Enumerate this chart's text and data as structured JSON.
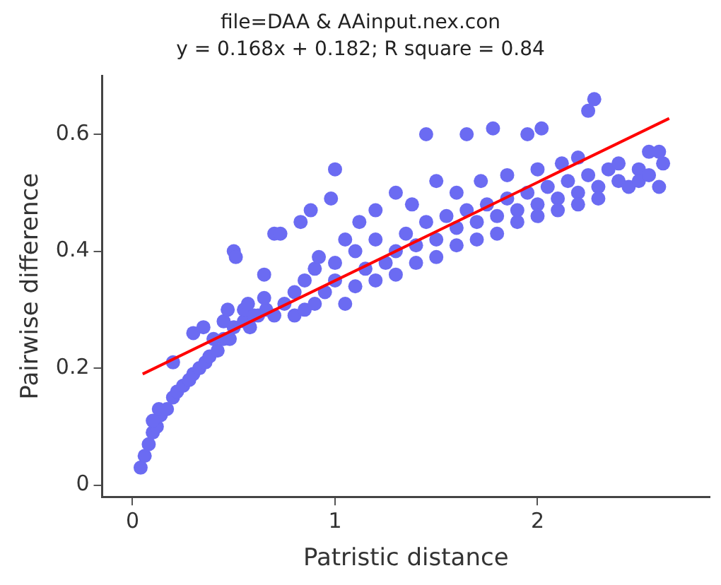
{
  "chart_data": {
    "type": "scatter",
    "title": "file=DAA & AAinput.nex.con",
    "subtitle": "y = 0.168x + 0.182; R square = 0.84",
    "xlabel": "Patristic distance",
    "ylabel": "Pairwise difference",
    "xlim": [
      -0.15,
      2.85
    ],
    "ylim": [
      -0.02,
      0.7
    ],
    "xticks": [
      0,
      1,
      2
    ],
    "yticks": [
      0,
      0.2,
      0.4,
      0.6
    ],
    "grid": false,
    "legend": false,
    "marker": "circle",
    "series": [
      {
        "type": "scatter",
        "color": "#6b6bf2",
        "x": [
          0.04,
          0.06,
          0.08,
          0.1,
          0.12,
          0.14,
          0.1,
          0.13,
          0.17,
          0.2,
          0.22,
          0.25,
          0.28,
          0.3,
          0.33,
          0.36,
          0.38,
          0.42,
          0.45,
          0.48,
          0.5,
          0.55,
          0.58,
          0.62,
          0.66,
          0.7,
          0.75,
          0.8,
          0.85,
          0.9,
          0.2,
          0.4,
          0.45,
          0.55,
          0.6,
          0.65,
          0.8,
          0.85,
          0.9,
          0.92,
          0.95,
          1.0,
          1.0,
          1.05,
          1.1,
          1.1,
          1.15,
          1.2,
          1.2,
          1.25,
          1.3,
          1.3,
          1.35,
          1.4,
          1.4,
          1.45,
          1.5,
          1.5,
          1.55,
          1.6,
          1.6,
          1.65,
          1.7,
          1.7,
          1.75,
          1.8,
          1.8,
          1.85,
          1.9,
          1.9,
          1.95,
          2.0,
          2.0,
          2.05,
          2.1,
          2.1,
          2.15,
          2.2,
          2.2,
          2.25,
          2.3,
          2.3,
          2.35,
          2.4,
          2.45,
          2.5,
          2.5,
          2.55,
          2.6,
          1.05,
          1.12,
          1.2,
          1.3,
          1.38,
          1.5,
          1.6,
          1.72,
          1.85,
          2.0,
          2.12,
          2.2,
          2.4,
          0.3,
          0.35,
          0.5,
          0.51,
          0.47,
          0.57,
          0.65,
          0.7,
          0.73,
          0.83,
          0.88,
          0.98,
          1.0,
          1.45,
          1.65,
          1.78,
          1.95,
          2.02,
          2.25,
          2.28,
          2.55,
          2.62,
          2.6
        ],
        "values": [
          0.03,
          0.05,
          0.07,
          0.09,
          0.1,
          0.12,
          0.11,
          0.13,
          0.13,
          0.15,
          0.16,
          0.17,
          0.18,
          0.19,
          0.2,
          0.21,
          0.22,
          0.23,
          0.25,
          0.25,
          0.27,
          0.28,
          0.27,
          0.29,
          0.3,
          0.29,
          0.31,
          0.29,
          0.3,
          0.31,
          0.21,
          0.25,
          0.28,
          0.3,
          0.29,
          0.32,
          0.33,
          0.35,
          0.37,
          0.39,
          0.33,
          0.35,
          0.38,
          0.31,
          0.34,
          0.4,
          0.37,
          0.35,
          0.42,
          0.38,
          0.4,
          0.36,
          0.43,
          0.41,
          0.38,
          0.45,
          0.42,
          0.39,
          0.46,
          0.44,
          0.41,
          0.47,
          0.45,
          0.42,
          0.48,
          0.46,
          0.43,
          0.49,
          0.47,
          0.45,
          0.5,
          0.48,
          0.46,
          0.51,
          0.49,
          0.47,
          0.52,
          0.5,
          0.48,
          0.53,
          0.51,
          0.49,
          0.54,
          0.52,
          0.51,
          0.54,
          0.52,
          0.53,
          0.51,
          0.42,
          0.45,
          0.47,
          0.5,
          0.48,
          0.52,
          0.5,
          0.52,
          0.53,
          0.54,
          0.55,
          0.56,
          0.55,
          0.26,
          0.27,
          0.4,
          0.39,
          0.3,
          0.31,
          0.36,
          0.43,
          0.43,
          0.45,
          0.47,
          0.49,
          0.54,
          0.6,
          0.6,
          0.61,
          0.6,
          0.61,
          0.64,
          0.66,
          0.57,
          0.55,
          0.57
        ]
      },
      {
        "type": "line",
        "color": "#ff0000",
        "marker": "none",
        "x": [
          0.05,
          2.65
        ],
        "values": [
          0.19,
          0.627
        ]
      }
    ]
  }
}
